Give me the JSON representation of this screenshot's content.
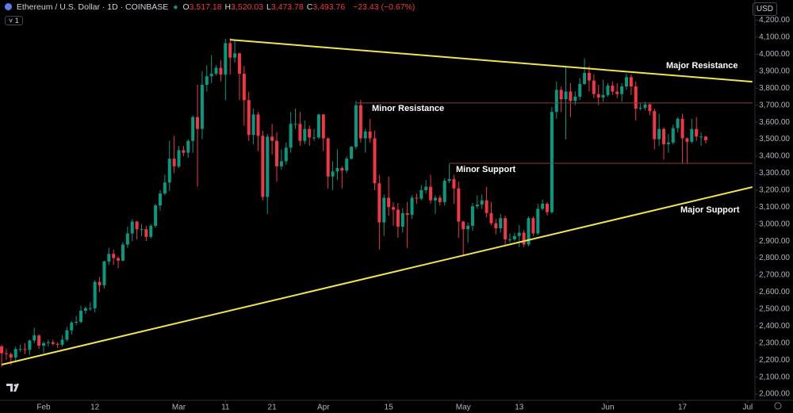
{
  "chart_data": {
    "type": "candlestick",
    "header": {
      "symbol": "Ethereum / U.S. Dollar · 1D · COINBASE",
      "ohlc": [
        {
          "key": "O",
          "value": "3,517.18"
        },
        {
          "key": "H",
          "value": "3,520.03"
        },
        {
          "key": "L",
          "value": "3,473.78"
        },
        {
          "key": "C",
          "value": "3,493.76"
        }
      ],
      "change": "−23.43 (−0.67%)"
    },
    "currency": "USD",
    "interval": "1",
    "up_color": "#089981",
    "down_color": "#f23645",
    "x": [
      "01-23",
      "01-24",
      "01-25",
      "01-26",
      "01-27",
      "01-28",
      "01-29",
      "01-30",
      "01-31",
      "02-01",
      "02-02",
      "02-03",
      "02-04",
      "02-05",
      "02-06",
      "02-07",
      "02-08",
      "02-09",
      "02-10",
      "02-11",
      "02-12",
      "02-13",
      "02-14",
      "02-15",
      "02-16",
      "02-17",
      "02-18",
      "02-19",
      "02-20",
      "02-21",
      "02-22",
      "02-23",
      "02-24",
      "02-25",
      "02-26",
      "02-27",
      "02-28",
      "02-29",
      "03-01",
      "03-02",
      "03-03",
      "03-04",
      "03-05",
      "03-06",
      "03-07",
      "03-08",
      "03-09",
      "03-10",
      "03-11",
      "03-12",
      "03-13",
      "03-14",
      "03-15",
      "03-16",
      "03-17",
      "03-18",
      "03-19",
      "03-20",
      "03-21",
      "03-22",
      "03-23",
      "03-24",
      "03-25",
      "03-26",
      "03-27",
      "03-28",
      "03-29",
      "03-30",
      "03-31",
      "04-01",
      "04-02",
      "04-03",
      "04-04",
      "04-05",
      "04-06",
      "04-07",
      "04-08",
      "04-09",
      "04-10",
      "04-11",
      "04-12",
      "04-13",
      "04-14",
      "04-15",
      "04-16",
      "04-17",
      "04-18",
      "04-19",
      "04-20",
      "04-21",
      "04-22",
      "04-23",
      "04-24",
      "04-25",
      "04-26",
      "04-27",
      "04-28",
      "04-29",
      "04-30",
      "05-01",
      "05-02",
      "05-03",
      "05-04",
      "05-05",
      "05-06",
      "05-07",
      "05-08",
      "05-09",
      "05-10",
      "05-11",
      "05-12",
      "05-13",
      "05-14",
      "05-15",
      "05-16",
      "05-17",
      "05-18",
      "05-19",
      "05-20",
      "05-21",
      "05-22",
      "05-23",
      "05-24",
      "05-25",
      "05-26",
      "05-27",
      "05-28",
      "05-29",
      "05-30",
      "05-31",
      "06-01",
      "06-02",
      "06-03",
      "06-04",
      "06-05",
      "06-06",
      "06-07",
      "06-08",
      "06-09",
      "06-10",
      "06-11",
      "06-12",
      "06-13",
      "06-14",
      "06-15",
      "06-16",
      "06-17",
      "06-18",
      "06-19",
      "06-20",
      "06-21",
      "06-22"
    ],
    "ohlc": [
      [
        2280,
        2290,
        2160,
        2240
      ],
      [
        2240,
        2265,
        2200,
        2235
      ],
      [
        2235,
        2245,
        2170,
        2215
      ],
      [
        2215,
        2280,
        2195,
        2265
      ],
      [
        2265,
        2290,
        2250,
        2265
      ],
      [
        2265,
        2300,
        2235,
        2260
      ],
      [
        2260,
        2320,
        2230,
        2315
      ],
      [
        2315,
        2390,
        2300,
        2345
      ],
      [
        2345,
        2350,
        2265,
        2285
      ],
      [
        2285,
        2310,
        2240,
        2300
      ],
      [
        2300,
        2320,
        2280,
        2305
      ],
      [
        2305,
        2320,
        2285,
        2295
      ],
      [
        2295,
        2305,
        2270,
        2290
      ],
      [
        2290,
        2345,
        2280,
        2320
      ],
      [
        2320,
        2395,
        2310,
        2375
      ],
      [
        2375,
        2430,
        2350,
        2420
      ],
      [
        2420,
        2460,
        2405,
        2425
      ],
      [
        2425,
        2520,
        2415,
        2490
      ],
      [
        2490,
        2515,
        2470,
        2505
      ],
      [
        2505,
        2540,
        2490,
        2505
      ],
      [
        2505,
        2670,
        2480,
        2660
      ],
      [
        2660,
        2690,
        2600,
        2640
      ],
      [
        2640,
        2785,
        2620,
        2780
      ],
      [
        2780,
        2860,
        2760,
        2825
      ],
      [
        2825,
        2850,
        2760,
        2800
      ],
      [
        2800,
        2810,
        2740,
        2785
      ],
      [
        2785,
        2895,
        2780,
        2880
      ],
      [
        2880,
        2985,
        2860,
        2945
      ],
      [
        2945,
        3030,
        2900,
        3015
      ],
      [
        3015,
        3020,
        2910,
        2970
      ],
      [
        2970,
        3000,
        2930,
        2970
      ],
      [
        2970,
        2990,
        2900,
        2925
      ],
      [
        2925,
        3000,
        2915,
        2990
      ],
      [
        2990,
        3120,
        2980,
        3110
      ],
      [
        3110,
        3200,
        3080,
        3180
      ],
      [
        3180,
        3290,
        3170,
        3245
      ],
      [
        3245,
        3490,
        3195,
        3385
      ],
      [
        3385,
        3520,
        3300,
        3340
      ],
      [
        3340,
        3460,
        3330,
        3435
      ],
      [
        3435,
        3460,
        3400,
        3420
      ],
      [
        3420,
        3500,
        3390,
        3490
      ],
      [
        3490,
        3640,
        3420,
        3630
      ],
      [
        3630,
        3820,
        3220,
        3560
      ],
      [
        3560,
        3900,
        3500,
        3820
      ],
      [
        3820,
        3935,
        3780,
        3870
      ],
      [
        3870,
        3995,
        3830,
        3885
      ],
      [
        3885,
        3935,
        3875,
        3920
      ],
      [
        3920,
        3965,
        3840,
        3880
      ],
      [
        3880,
        4090,
        3730,
        4065
      ],
      [
        4065,
        4095,
        3880,
        3980
      ],
      [
        3980,
        4085,
        3950,
        4005
      ],
      [
        4005,
        4010,
        3730,
        3885
      ],
      [
        3885,
        3930,
        3580,
        3730
      ],
      [
        3730,
        3780,
        3490,
        3525
      ],
      [
        3525,
        3680,
        3470,
        3645
      ],
      [
        3645,
        3660,
        3430,
        3520
      ],
      [
        3520,
        3550,
        3140,
        3160
      ],
      [
        3160,
        3530,
        3060,
        3515
      ],
      [
        3515,
        3590,
        3410,
        3490
      ],
      [
        3490,
        3540,
        3250,
        3340
      ],
      [
        3340,
        3440,
        3320,
        3370
      ],
      [
        3370,
        3480,
        3350,
        3450
      ],
      [
        3450,
        3660,
        3420,
        3590
      ],
      [
        3590,
        3680,
        3560,
        3590
      ],
      [
        3590,
        3660,
        3460,
        3490
      ],
      [
        3490,
        3610,
        3470,
        3560
      ],
      [
        3560,
        3580,
        3460,
        3510
      ],
      [
        3510,
        3560,
        3490,
        3510
      ],
      [
        3510,
        3650,
        3500,
        3645
      ],
      [
        3645,
        3650,
        3430,
        3505
      ],
      [
        3505,
        3510,
        3210,
        3280
      ],
      [
        3280,
        3370,
        3200,
        3310
      ],
      [
        3310,
        3440,
        3260,
        3330
      ],
      [
        3330,
        3340,
        3210,
        3315
      ],
      [
        3315,
        3400,
        3300,
        3385
      ],
      [
        3385,
        3460,
        3380,
        3455
      ],
      [
        3455,
        3725,
        3440,
        3700
      ],
      [
        3700,
        3730,
        3480,
        3505
      ],
      [
        3505,
        3560,
        3420,
        3545
      ],
      [
        3545,
        3620,
        3480,
        3505
      ],
      [
        3505,
        3550,
        3200,
        3240
      ],
      [
        3240,
        3290,
        2850,
        3010
      ],
      [
        3010,
        3175,
        2930,
        3155
      ],
      [
        3155,
        3280,
        3050,
        3100
      ],
      [
        3100,
        3130,
        2990,
        3085
      ],
      [
        3085,
        3125,
        2920,
        2985
      ],
      [
        2985,
        3095,
        2950,
        3065
      ],
      [
        3065,
        3130,
        2860,
        3055
      ],
      [
        3055,
        3170,
        3030,
        3155
      ],
      [
        3155,
        3180,
        3120,
        3150
      ],
      [
        3150,
        3230,
        3140,
        3200
      ],
      [
        3200,
        3260,
        3180,
        3220
      ],
      [
        3220,
        3290,
        3120,
        3140
      ],
      [
        3140,
        3170,
        3060,
        3155
      ],
      [
        3155,
        3170,
        3110,
        3130
      ],
      [
        3130,
        3270,
        3110,
        3255
      ],
      [
        3255,
        3355,
        3240,
        3265
      ],
      [
        3265,
        3290,
        3120,
        3210
      ],
      [
        3210,
        3250,
        2920,
        3015
      ],
      [
        3015,
        3020,
        2810,
        2970
      ],
      [
        2970,
        3010,
        2890,
        2990
      ],
      [
        2990,
        3125,
        2960,
        3105
      ],
      [
        3105,
        3170,
        3090,
        3115
      ],
      [
        3115,
        3175,
        3090,
        3140
      ],
      [
        3140,
        3220,
        3040,
        3065
      ],
      [
        3065,
        3130,
        2995,
        3005
      ],
      [
        3005,
        3030,
        2940,
        2975
      ],
      [
        2975,
        3060,
        2950,
        3035
      ],
      [
        3035,
        3050,
        2880,
        2910
      ],
      [
        2910,
        2945,
        2890,
        2910
      ],
      [
        2910,
        2950,
        2900,
        2930
      ],
      [
        2930,
        2995,
        2865,
        2950
      ],
      [
        2950,
        2965,
        2865,
        2880
      ],
      [
        2880,
        3045,
        2870,
        3035
      ],
      [
        3035,
        3045,
        2930,
        2945
      ],
      [
        2945,
        3120,
        2935,
        3090
      ],
      [
        3090,
        3145,
        3080,
        3120
      ],
      [
        3120,
        3130,
        3050,
        3070
      ],
      [
        3070,
        3690,
        3060,
        3660
      ],
      [
        3660,
        3840,
        3620,
        3790
      ],
      [
        3790,
        3810,
        3660,
        3735
      ],
      [
        3735,
        3930,
        3500,
        3780
      ],
      [
        3780,
        3830,
        3630,
        3725
      ],
      [
        3725,
        3780,
        3700,
        3750
      ],
      [
        3750,
        3860,
        3730,
        3825
      ],
      [
        3825,
        3975,
        3820,
        3890
      ],
      [
        3890,
        3930,
        3780,
        3845
      ],
      [
        3845,
        3880,
        3740,
        3765
      ],
      [
        3765,
        3820,
        3700,
        3745
      ],
      [
        3745,
        3850,
        3720,
        3760
      ],
      [
        3760,
        3830,
        3750,
        3815
      ],
      [
        3815,
        3840,
        3760,
        3780
      ],
      [
        3780,
        3830,
        3740,
        3765
      ],
      [
        3765,
        3830,
        3720,
        3810
      ],
      [
        3810,
        3885,
        3790,
        3865
      ],
      [
        3865,
        3880,
        3760,
        3810
      ],
      [
        3810,
        3840,
        3610,
        3680
      ],
      [
        3680,
        3710,
        3670,
        3685
      ],
      [
        3685,
        3720,
        3670,
        3705
      ],
      [
        3705,
        3710,
        3640,
        3665
      ],
      [
        3665,
        3680,
        3440,
        3500
      ],
      [
        3500,
        3650,
        3460,
        3560
      ],
      [
        3560,
        3570,
        3380,
        3470
      ],
      [
        3470,
        3530,
        3420,
        3480
      ],
      [
        3480,
        3585,
        3470,
        3565
      ],
      [
        3565,
        3630,
        3540,
        3620
      ],
      [
        3620,
        3650,
        3360,
        3505
      ],
      [
        3505,
        3510,
        3360,
        3485
      ],
      [
        3485,
        3620,
        3475,
        3560
      ],
      [
        3560,
        3630,
        3490,
        3515
      ],
      [
        3515,
        3540,
        3460,
        3515
      ],
      [
        3515,
        3520,
        3474,
        3494
      ]
    ],
    "ylim": [
      1963,
      4319
    ],
    "yticks": [
      {
        "value": 2000,
        "label": "2,000.00"
      },
      {
        "value": 2100,
        "label": "2,100.00"
      },
      {
        "value": 2200,
        "label": "2,200.00"
      },
      {
        "value": 2300,
        "label": "2,300.00"
      },
      {
        "value": 2400,
        "label": "2,400.00"
      },
      {
        "value": 2500,
        "label": "2,500.00"
      },
      {
        "value": 2600,
        "label": "2,600.00"
      },
      {
        "value": 2700,
        "label": "2,700.00"
      },
      {
        "value": 2800,
        "label": "2,800.00"
      },
      {
        "value": 2900,
        "label": "2,900.00"
      },
      {
        "value": 3000,
        "label": "3,000.00"
      },
      {
        "value": 3100,
        "label": "3,100.00"
      },
      {
        "value": 3200,
        "label": "3,200.00"
      },
      {
        "value": 3300,
        "label": "3,300.00"
      },
      {
        "value": 3400,
        "label": "3,400.00"
      },
      {
        "value": 3500,
        "label": "3,500.00"
      },
      {
        "value": 3600,
        "label": "3,600.00"
      },
      {
        "value": 3700,
        "label": "3,700.00"
      },
      {
        "value": 3800,
        "label": "3,800.00"
      },
      {
        "value": 3900,
        "label": "3,900.00"
      },
      {
        "value": 4000,
        "label": "4,000.00"
      },
      {
        "value": 4100,
        "label": "4,100.00"
      },
      {
        "value": 4200,
        "label": "4,200.00"
      }
    ],
    "xticks": [
      {
        "value": "02-01",
        "label": "Feb"
      },
      {
        "value": "02-12",
        "label": "12"
      },
      {
        "value": "03-01",
        "label": "Mar"
      },
      {
        "value": "03-11",
        "label": "11"
      },
      {
        "value": "03-21",
        "label": "21"
      },
      {
        "value": "04-01",
        "label": "Apr"
      },
      {
        "value": "04-15",
        "label": "15"
      },
      {
        "value": "05-01",
        "label": "May"
      },
      {
        "value": "05-13",
        "label": "13"
      },
      {
        "value": "06-01",
        "label": "Jun"
      },
      {
        "value": "06-17",
        "label": "17"
      },
      {
        "value": "07-01",
        "label": "Jul"
      }
    ],
    "annotations": [
      {
        "text": "Major Resistance",
        "x": [
          "03-12",
          "07-02"
        ],
        "y": [
          4085,
          3838
        ],
        "color": "#f2e350"
      },
      {
        "text": "Minor Resistance",
        "x": [
          "04-08",
          "07-02"
        ],
        "y": [
          3713,
          3713
        ],
        "color": "#8e3b3b"
      },
      {
        "text": "Minor Support",
        "x": [
          "04-28",
          "07-02"
        ],
        "y": [
          3358,
          3358
        ],
        "color": "#8e3b3b"
      },
      {
        "text": "Major Support",
        "x": [
          "01-23",
          "07-02"
        ],
        "y": [
          2173,
          3218
        ],
        "color": "#f2e350"
      }
    ]
  }
}
